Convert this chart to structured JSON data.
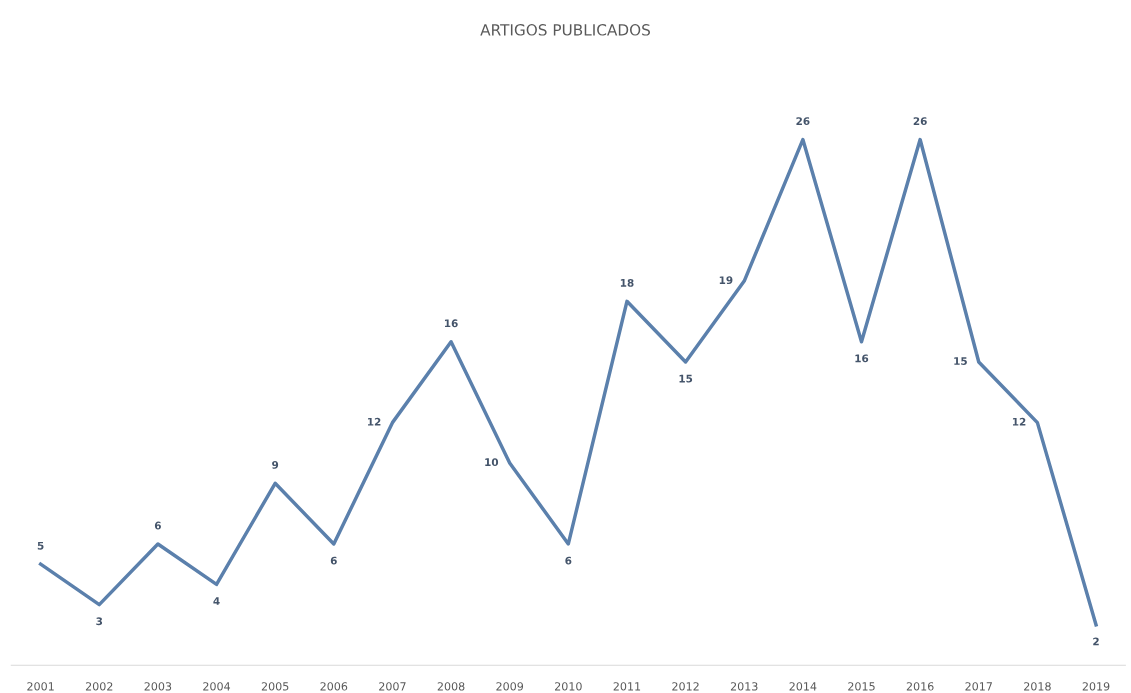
{
  "chart_data": {
    "type": "line",
    "title": "ARTIGOS PUBLICADOS",
    "categories": [
      "2001",
      "2002",
      "2003",
      "2004",
      "2005",
      "2006",
      "2007",
      "2008",
      "2009",
      "2010",
      "2011",
      "2012",
      "2013",
      "2014",
      "2015",
      "2016",
      "2017",
      "2018",
      "2019"
    ],
    "values": [
      5,
      3,
      6,
      4,
      9,
      6,
      12,
      16,
      10,
      6,
      18,
      15,
      19,
      26,
      16,
      26,
      15,
      12,
      2
    ],
    "color": "#5b80ac",
    "data_labels": true,
    "grid": false,
    "legend": false,
    "marker": "none",
    "line_style": "solid"
  }
}
